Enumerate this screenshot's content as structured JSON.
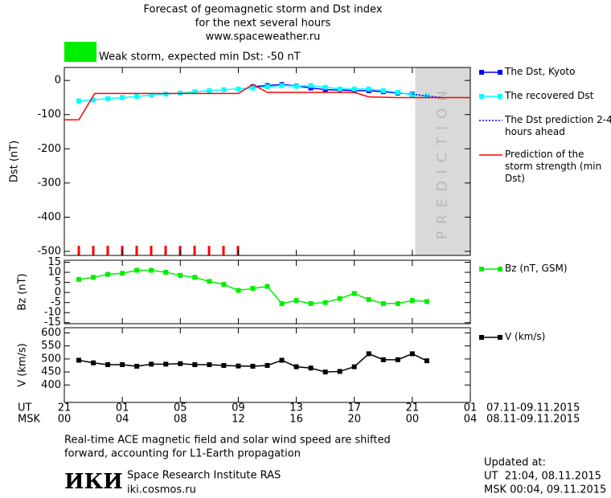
{
  "title_lines": [
    "Forecast of geomagnetic storm and Dst index",
    "for the next several hours",
    "www.spaceweather.ru"
  ],
  "storm_label": "Weak storm, expected min Dst: -50 nT",
  "x_axis": {
    "xlim": [
      0,
      28
    ],
    "ut_label": "UT",
    "msk_label": "MSK",
    "xticks": [
      {
        "value": 0,
        "label": "21"
      },
      {
        "value": 4,
        "label": "01"
      },
      {
        "value": 8,
        "label": "05"
      },
      {
        "value": 12,
        "label": "09"
      },
      {
        "value": 16,
        "label": "13"
      },
      {
        "value": 20,
        "label": "17"
      },
      {
        "value": 24,
        "label": "21"
      },
      {
        "value": 28,
        "label": "01"
      }
    ],
    "msk_labels": [
      "00",
      "04",
      "08",
      "12",
      "16",
      "20",
      "00",
      "04"
    ],
    "ut_range": "07.11-09.11.2015",
    "msk_range": "08.11-09.11.2015"
  },
  "chart_data": [
    {
      "type": "line",
      "ylabel": "Dst (nT)",
      "ylim": [
        -512,
        38
      ],
      "yticks": [
        0,
        -100,
        -200,
        -300,
        -400,
        -500
      ],
      "shade": {
        "xlim": [
          24.2,
          28
        ],
        "label": "PREDICTION",
        "color": "#d9d9d9"
      },
      "series": [
        {
          "name": "The Dst, Kyoto",
          "color": "#0000ff",
          "marker": "square",
          "dash": false,
          "x": [
            13,
            14,
            15,
            16,
            17,
            18,
            19,
            20,
            21,
            22,
            23,
            24
          ],
          "values": [
            -18,
            -15,
            -12,
            -16,
            -22,
            -27,
            -28,
            -30,
            -30,
            -33,
            -37,
            -40
          ]
        },
        {
          "name": "The recovered Dst",
          "color": "#00ffff",
          "marker": "square",
          "dash": false,
          "x": [
            1,
            2,
            3,
            4,
            5,
            6,
            7,
            8,
            9,
            10,
            11,
            12,
            13,
            14,
            15,
            16,
            17,
            18,
            19,
            20,
            21,
            22,
            23,
            24,
            25
          ],
          "values": [
            -60,
            -57,
            -53,
            -50,
            -47,
            -43,
            -40,
            -37,
            -33,
            -30,
            -27,
            -25,
            -22,
            -18,
            -15,
            -17,
            -15,
            -20,
            -25,
            -25,
            -25,
            -30,
            -35,
            -42,
            -45
          ]
        },
        {
          "name": "The Dst prediction 2-4 hours ahead",
          "color": "#0000ff",
          "marker": null,
          "dash": true,
          "x": [
            24,
            25,
            26
          ],
          "values": [
            -40,
            -45,
            -50
          ]
        },
        {
          "name": "Prediction of the storm strength (min Dst)",
          "color": "#ff0000",
          "marker": null,
          "dash": false,
          "x": [
            0,
            1,
            2.1,
            12,
            13,
            14,
            20,
            21,
            23,
            28
          ],
          "values": [
            -115,
            -115,
            -38,
            -38,
            -12,
            -35,
            -35,
            -48,
            -50,
            -50
          ]
        }
      ]
    },
    {
      "type": "line",
      "ylabel": "Bz (nT)",
      "ylim": [
        -15.5,
        16
      ],
      "yticks": [
        15,
        10,
        5,
        0,
        -5,
        -10,
        -15
      ],
      "series": [
        {
          "name": "Bz (nT, GSM)",
          "color": "#00ee00",
          "marker": "square",
          "dash": false,
          "x": [
            1,
            2,
            3,
            4,
            5,
            6,
            7,
            8,
            9,
            10,
            11,
            12,
            13,
            14,
            15,
            16,
            17,
            18,
            19,
            20,
            21,
            22,
            23,
            24,
            25
          ],
          "values": [
            6.5,
            7.5,
            9,
            9.5,
            11,
            11,
            10,
            8.5,
            7.5,
            5.5,
            4,
            1,
            2,
            3,
            -5.5,
            -4,
            -5.5,
            -5,
            -3,
            -0.5,
            -3.5,
            -5.5,
            -5.5,
            -4,
            -4.5
          ]
        }
      ]
    },
    {
      "type": "line",
      "ylabel": "V (km/s)",
      "ylim": [
        333,
        620
      ],
      "yticks": [
        400,
        450,
        500,
        550,
        600
      ],
      "series": [
        {
          "name": "V (km/s)",
          "color": "#000000",
          "marker": "square",
          "dash": false,
          "x": [
            1,
            2,
            3,
            4,
            5,
            6,
            7,
            8,
            9,
            10,
            11,
            12,
            13,
            14,
            15,
            16,
            17,
            18,
            19,
            20,
            21,
            22,
            23,
            24,
            25
          ],
          "values": [
            495,
            485,
            478,
            478,
            472,
            480,
            480,
            482,
            478,
            478,
            475,
            473,
            472,
            475,
            495,
            470,
            465,
            450,
            452,
            470,
            520,
            497,
            497,
            520,
            493
          ]
        }
      ]
    }
  ],
  "footer": {
    "note_lines": [
      "Real-time ACE magnetic field and solar wind speed are shifted",
      "forward, accounting for L1-Earth propagation"
    ],
    "logo": "ИКИ",
    "institute": "Space Research Institute RAS",
    "site": "iki.cosmos.ru",
    "updated_label": "Updated at:",
    "updated_ut": "UT  21:04, 08.11.2015",
    "updated_msk": "MSK 00:04, 09.11.2015"
  }
}
